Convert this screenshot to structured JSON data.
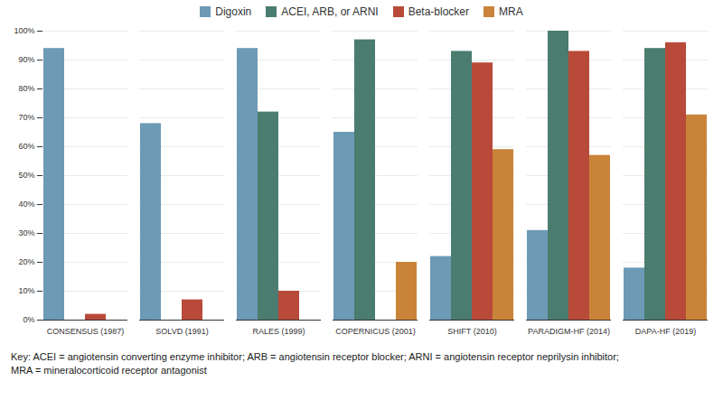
{
  "chart_data": {
    "type": "bar",
    "categories": [
      "CONSENSUS (1987)",
      "SOLVD (1991)",
      "RALES (1999)",
      "COPERNICUS (2001)",
      "SHIFT (2010)",
      "PARADIGM-HF (2014)",
      "DAPA-HF (2019)"
    ],
    "series": [
      {
        "name": "Digoxin",
        "color": "#6d9ab5",
        "values": [
          94,
          68,
          94,
          65,
          22,
          31,
          18
        ]
      },
      {
        "name": "ACEI, ARB, or ARNI",
        "color": "#4a7c6f",
        "values": [
          null,
          null,
          72,
          97,
          93,
          100,
          94
        ]
      },
      {
        "name": "Beta-blocker",
        "color": "#b94a3a",
        "values": [
          2,
          7,
          10,
          null,
          89,
          93,
          96
        ]
      },
      {
        "name": "MRA",
        "color": "#c9843a",
        "values": [
          null,
          null,
          null,
          20,
          59,
          57,
          71
        ]
      }
    ],
    "ylim": [
      0,
      100
    ],
    "yticks": [
      {
        "value": 0,
        "label": "0%"
      },
      {
        "value": 10,
        "label": "10%"
      },
      {
        "value": 20,
        "label": "20%"
      },
      {
        "value": 30,
        "label": "30%"
      },
      {
        "value": 40,
        "label": "40%"
      },
      {
        "value": 50,
        "label": "50%"
      },
      {
        "value": 60,
        "label": "60%"
      },
      {
        "value": 70,
        "label": "70%"
      },
      {
        "value": 80,
        "label": "80%"
      },
      {
        "value": 90,
        "label": "90%"
      },
      {
        "value": 100,
        "label": "100%"
      }
    ],
    "grid": true,
    "legend": "top",
    "annotations": [
      "Key: ACEI = angiotensin converting enzyme inhibitor; ARB = angiotensin receptor blocker; ARNI = angiotensin receptor neprilysin inhibitor;\nMRA = mineralocorticoid receptor antagonist"
    ]
  }
}
